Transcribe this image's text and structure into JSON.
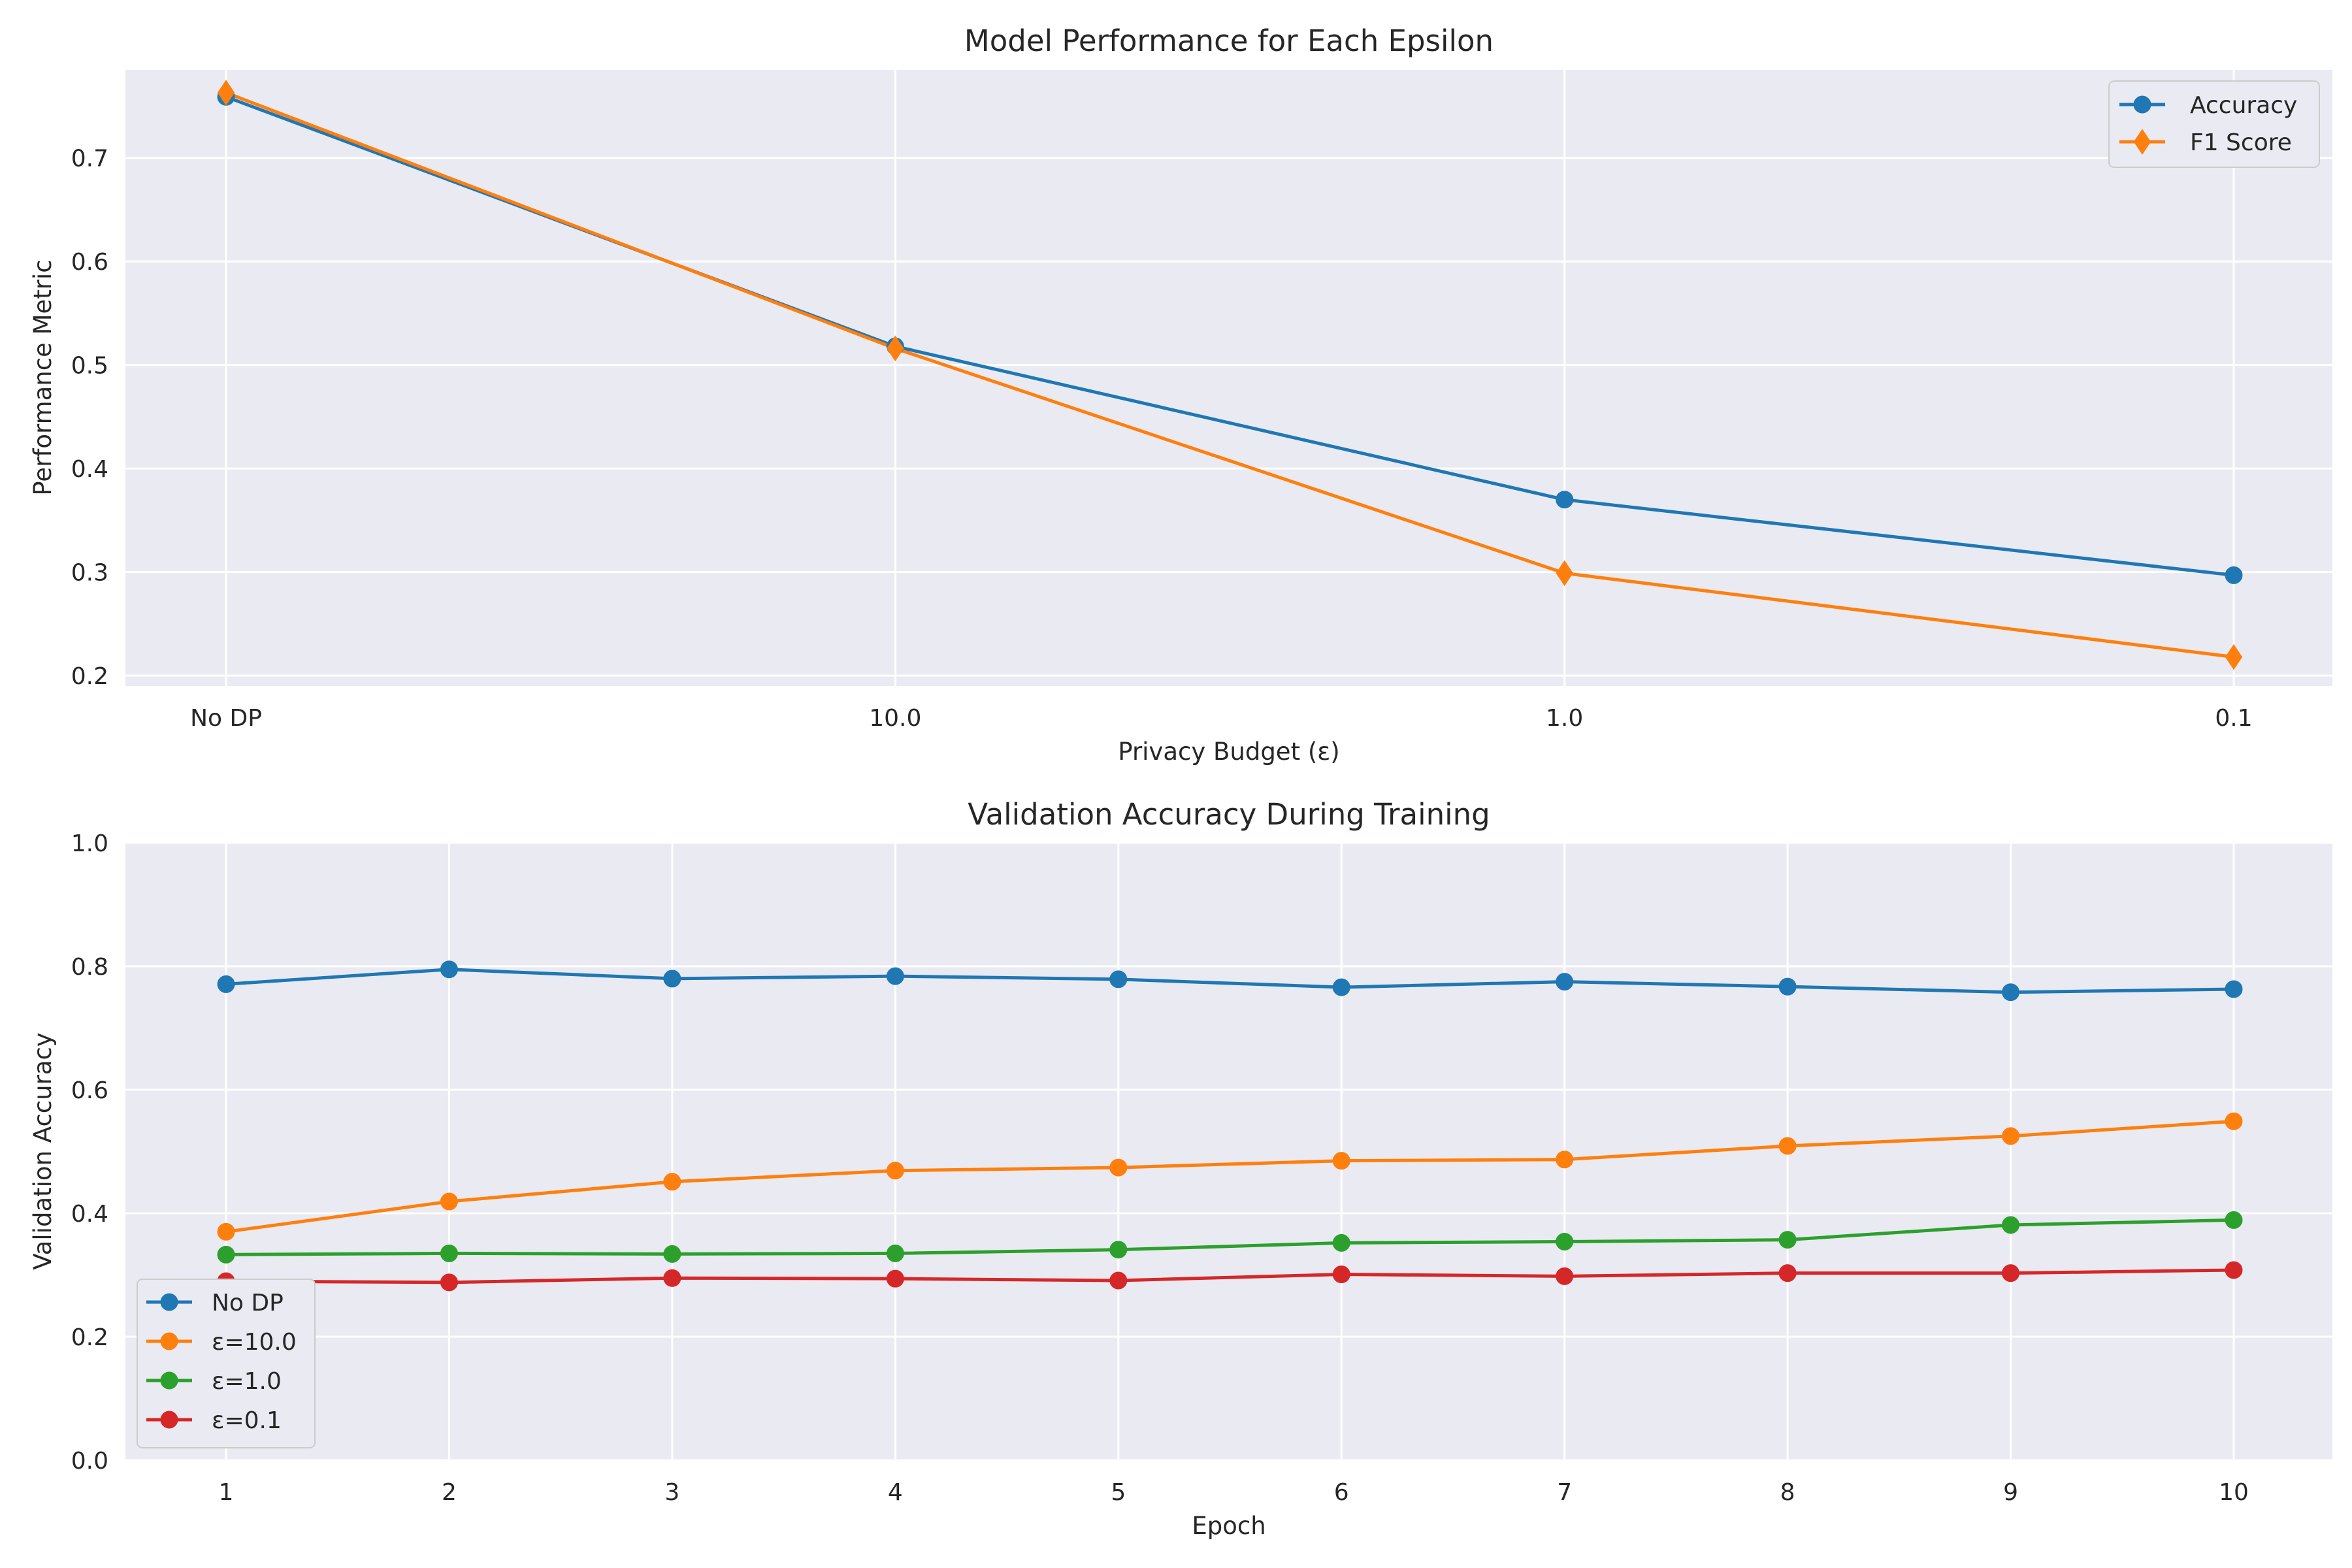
{
  "chart_data": [
    {
      "type": "line",
      "title": "Model Performance for Each Epsilon",
      "xlabel": "Privacy Budget (ε)",
      "ylabel": "Performance Metric",
      "categories": [
        "No DP",
        "10.0",
        "1.0",
        "0.1"
      ],
      "ylim": [
        0.19,
        0.785
      ],
      "yticks": [
        0.2,
        0.3,
        0.4,
        0.5,
        0.6,
        0.7
      ],
      "yticklabels": [
        "0.2",
        "0.3",
        "0.4",
        "0.5",
        "0.6",
        "0.7"
      ],
      "grid": true,
      "legend_position": "top-right",
      "series": [
        {
          "name": "Accuracy",
          "values": [
            0.759,
            0.518,
            0.37,
            0.297
          ],
          "color": "#1f77b4",
          "marker": "circle"
        },
        {
          "name": "F1 Score",
          "values": [
            0.763,
            0.516,
            0.299,
            0.218
          ],
          "color": "#ff7f0e",
          "marker": "thin-diamond"
        }
      ]
    },
    {
      "type": "line",
      "title": "Validation Accuracy During Training",
      "xlabel": "Epoch",
      "ylabel": "Validation Accuracy",
      "categories": [
        "1",
        "2",
        "3",
        "4",
        "5",
        "6",
        "7",
        "8",
        "9",
        "10"
      ],
      "ylim": [
        0.0,
        1.0
      ],
      "yticks": [
        0.0,
        0.2,
        0.4,
        0.6,
        0.8,
        1.0
      ],
      "yticklabels": [
        "0.0",
        "0.2",
        "0.4",
        "0.6",
        "0.8",
        "1.0"
      ],
      "grid": true,
      "legend_position": "lower-left",
      "series": [
        {
          "name": "No DP",
          "values": [
            0.771,
            0.795,
            0.78,
            0.784,
            0.779,
            0.766,
            0.775,
            0.767,
            0.758,
            0.763
          ],
          "color": "#1f77b4",
          "marker": "circle"
        },
        {
          "name": "ε=10.0",
          "values": [
            0.37,
            0.419,
            0.451,
            0.469,
            0.474,
            0.485,
            0.487,
            0.509,
            0.525,
            0.549
          ],
          "color": "#ff7f0e",
          "marker": "circle"
        },
        {
          "name": "ε=1.0",
          "values": [
            0.333,
            0.335,
            0.334,
            0.335,
            0.341,
            0.352,
            0.354,
            0.357,
            0.381,
            0.389
          ],
          "color": "#2ca02c",
          "marker": "circle"
        },
        {
          "name": "ε=0.1",
          "values": [
            0.29,
            0.288,
            0.295,
            0.294,
            0.291,
            0.301,
            0.298,
            0.303,
            0.303,
            0.308
          ],
          "color": "#d62728",
          "marker": "circle"
        }
      ]
    }
  ]
}
